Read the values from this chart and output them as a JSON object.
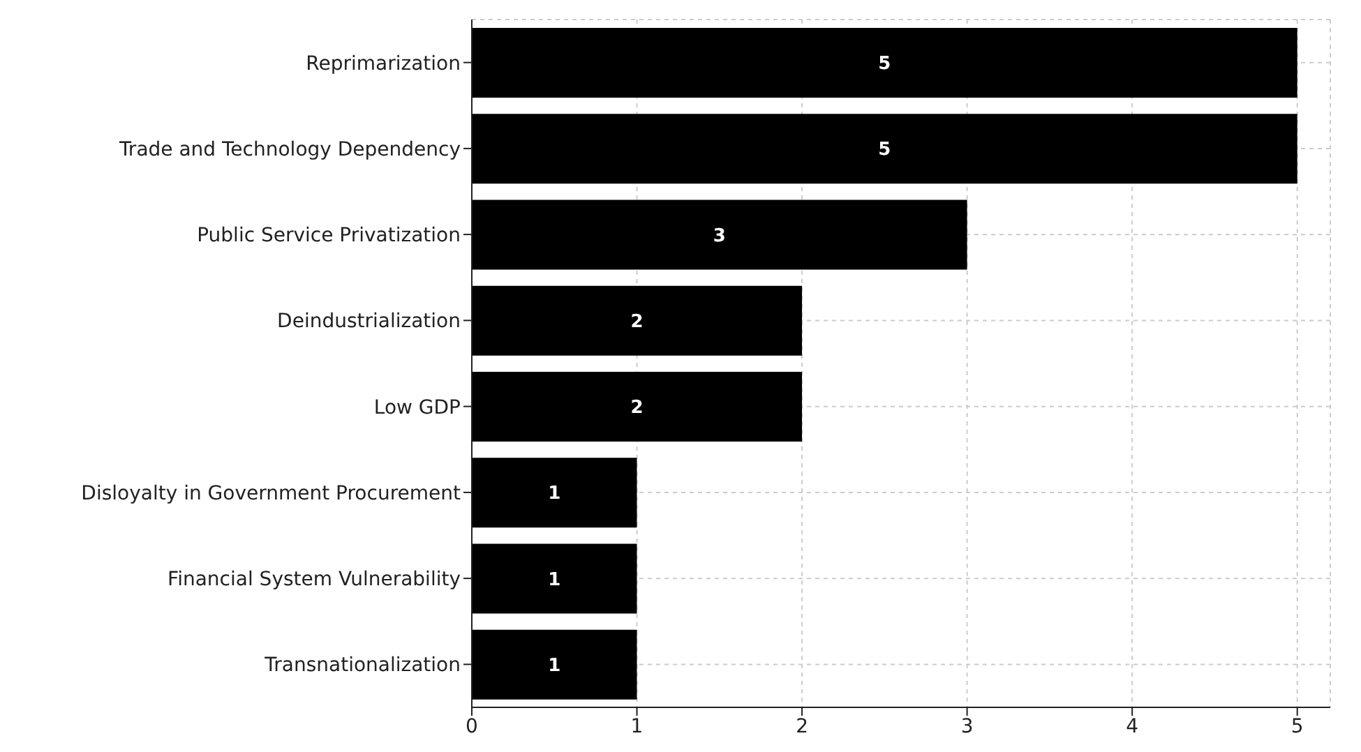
{
  "chart_data": {
    "type": "bar",
    "orientation": "horizontal",
    "categories": [
      "Reprimarization",
      "Trade and Technology Dependency",
      "Public Service Privatization",
      "Deindustrialization",
      "Low GDP",
      "Disloyalty in Government Procurement",
      "Financial System Vulnerability",
      "Transnationalization"
    ],
    "values": [
      5,
      5,
      3,
      2,
      2,
      1,
      1,
      1
    ],
    "color": "#000000",
    "xlim": [
      0,
      5.2
    ],
    "xticks": [
      0,
      1,
      2,
      3,
      4,
      5
    ],
    "grid": true,
    "data_labels": true
  }
}
